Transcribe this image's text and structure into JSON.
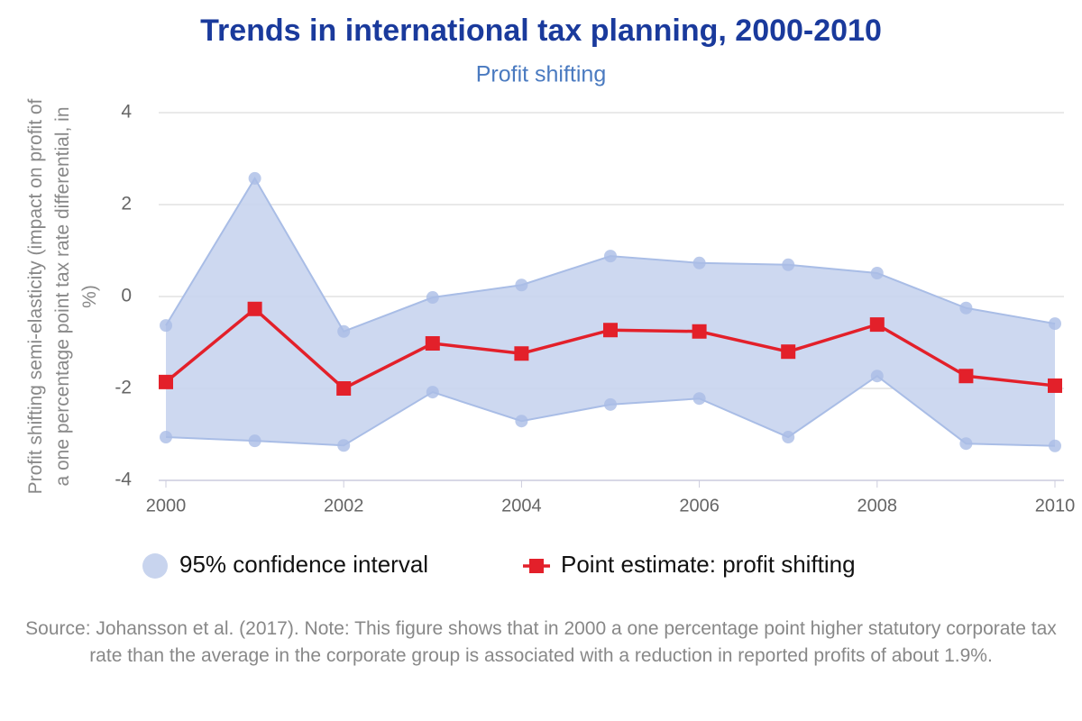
{
  "chart_data": {
    "type": "line-range",
    "title": "Trends in international tax planning, 2000-2010",
    "subtitle": "Profit shifting",
    "y_label": "Profit shifting semi-elasticity (impact on profit of a one percentage point tax rate differential, in %)",
    "note": "Source: Johansson et al. (2017). Note: This figure shows that in 2000 a one percentage point higher statutory corporate tax rate than the average in the corporate group is associated with a reduction in reported profits of about 1.9%.",
    "x": [
      2000,
      2001,
      2002,
      2003,
      2004,
      2005,
      2006,
      2007,
      2008,
      2009,
      2010
    ],
    "xlim": [
      2000,
      2010
    ],
    "xticks": [
      2000,
      2002,
      2004,
      2006,
      2008,
      2010
    ],
    "ylim": [
      -4,
      4
    ],
    "yticks": [
      -4,
      -2,
      0,
      2,
      4
    ],
    "grid": true,
    "series": [
      {
        "name": "95% confidence interval",
        "type": "range",
        "color": "#c8d4ee",
        "lower": [
          -3.06,
          -3.14,
          -3.24,
          -2.08,
          -2.71,
          -2.35,
          -2.22,
          -3.06,
          -1.73,
          -3.2,
          -3.25
        ],
        "upper": [
          -0.63,
          2.57,
          -0.76,
          -0.02,
          0.25,
          0.88,
          0.73,
          0.69,
          0.51,
          -0.25,
          -0.59
        ]
      },
      {
        "name": "Point estimate: profit shifting",
        "type": "line",
        "color": "#e3202a",
        "values": [
          -1.86,
          -0.27,
          -2.0,
          -1.02,
          -1.24,
          -0.73,
          -0.76,
          -1.2,
          -0.61,
          -1.73,
          -1.94
        ]
      }
    ]
  }
}
